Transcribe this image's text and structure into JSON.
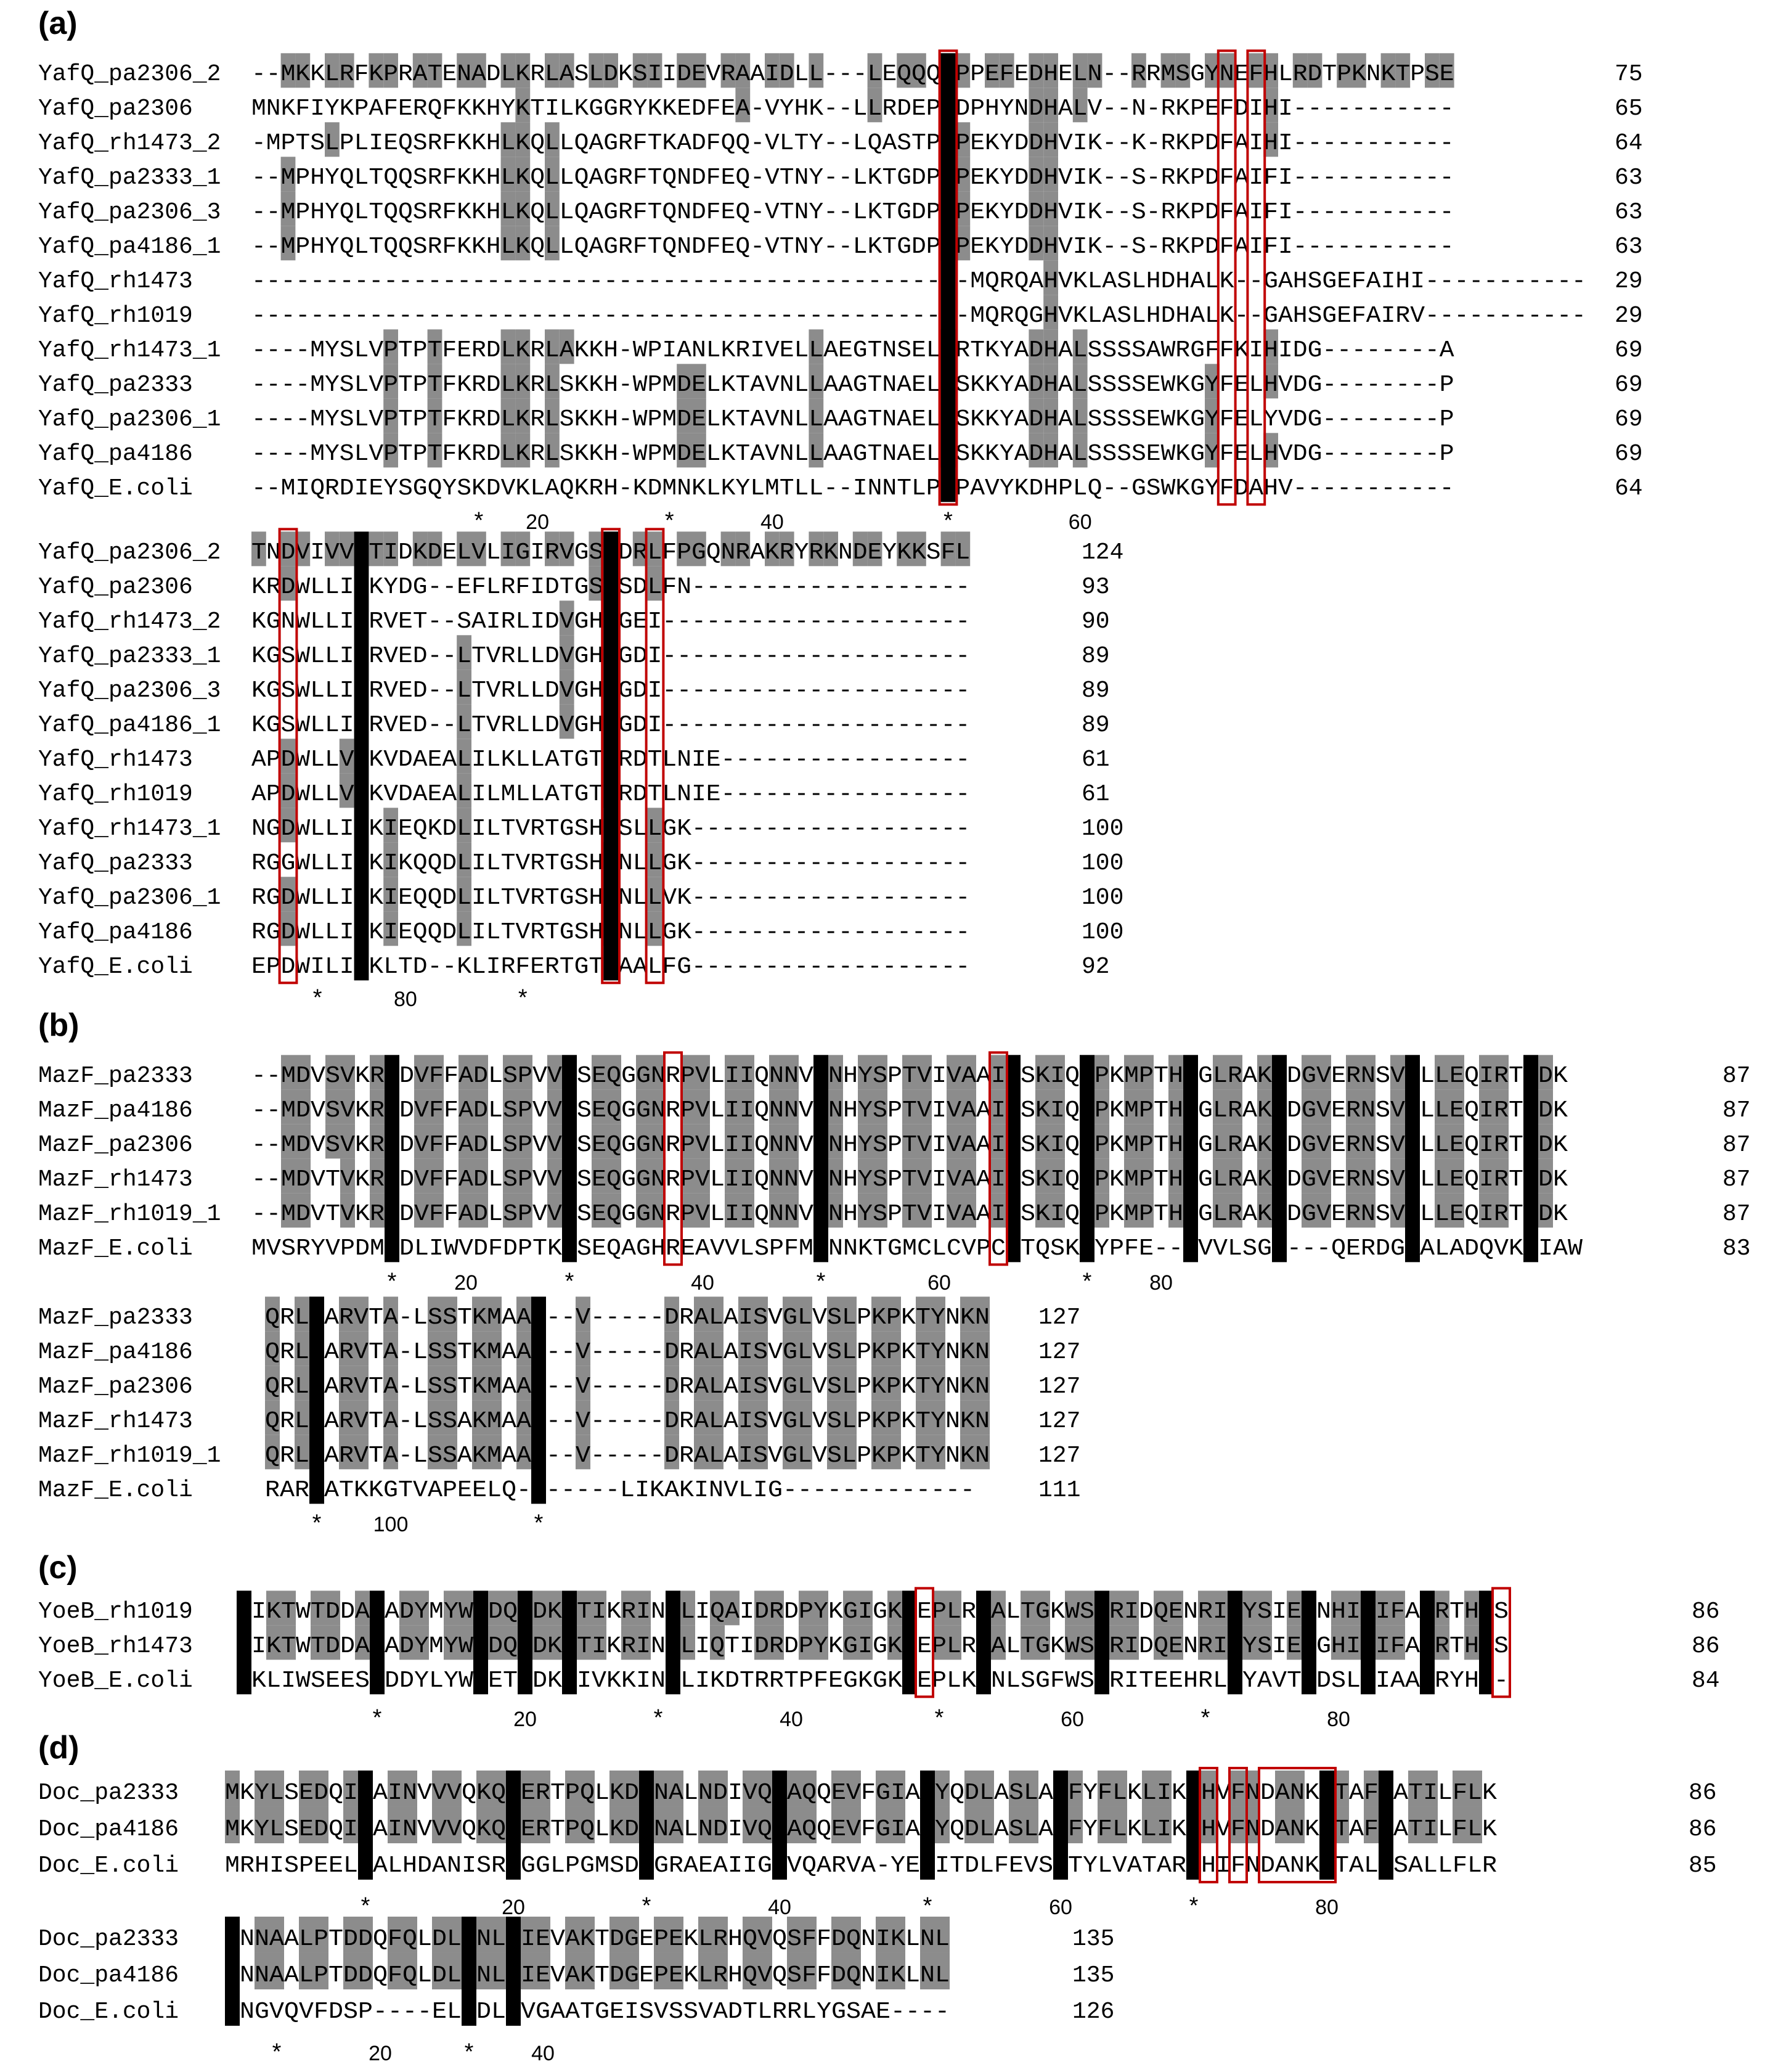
{
  "panels": [
    {
      "label": "(a)",
      "blocks": [
        {
          "rows": [
            {
              "name": "YafQ_pa2306_2",
              "seq": "--MKKLRFKPRATENADLKRLASLDKSIIDEVRAAIDLL---LEQQQLPPEFEDHELN--RRMSGYNEFHLRDTPKNKTPSE",
              "count": "75"
            },
            {
              "name": "YafQ_pa2306",
              "seq": "MNKFIYKPAFERQFKKHYKTILKGGRYKKEDFEA-VYHK--LLRDEPLDPHYNDHALV--N-RKPEFDIHI-----------",
              "count": "65"
            },
            {
              "name": "YafQ_rh1473_2",
              "seq": "-MPTSLPLIEQSRFKKHLKQLLQAGRFTKADFQQ-VLTY--LQASTPLPEKYDDHVIK--K-RKPDFAIHI-----------",
              "count": "64"
            },
            {
              "name": "YafQ_pa2333_1",
              "seq": "--MPHYQLTQQSRFKKHLKQLLQAGRFTQNDFEQ-VTNY--LKTGDPLPEKYDDHVIK--S-RKPDFAIFI-----------",
              "count": "63"
            },
            {
              "name": "YafQ_pa2306_3",
              "seq": "--MPHYQLTQQSRFKKHLKQLLQAGRFTQNDFEQ-VTNY--LKTGDPLPEKYDDHVIK--S-RKPDFAIFI-----------",
              "count": "63"
            },
            {
              "name": "YafQ_pa4186_1",
              "seq": "--MPHYQLTQQSRFKKHLKQLLQAGRFTQNDFEQ-VTNY--LKTGDPLPEKYDDHVIK--S-RKPDFAIFI-----------",
              "count": "63"
            },
            {
              "name": "YafQ_rh1473",
              "seq": "-------------------------------------------------MQRQAHVKLASLHDHALK--GAHSGEFAIHI-----------",
              "count": "29"
            },
            {
              "name": "YafQ_rh1019",
              "seq": "-------------------------------------------------MQRQGHVKLASLHDHALK--GAHSGEFAIRV-----------",
              "count": "29"
            },
            {
              "name": "YafQ_rh1473_1",
              "seq": "----MYSLVPTPTFERDLKRLAKKH-WPIANLKRIVELLAEGTNSELLRTKYADHALSSSSAWRGFFKIHIDG--------A",
              "count": "69"
            },
            {
              "name": "YafQ_pa2333",
              "seq": "----MYSLVPTPTFKRDLKRLSKKH-WPMDELKTAVNLLAAGTNAELLSKKYADHALSSSSEWKGYFELHVDG--------P",
              "count": "69"
            },
            {
              "name": "YafQ_pa2306_1",
              "seq": "----MYSLVPTPTFKRDLKRLSKKH-WPMDELKTAVNLLAAGTNAELLSKKYADHALSSSSEWKGYFELYVDG--------P",
              "count": "69"
            },
            {
              "name": "YafQ_pa4186",
              "seq": "----MYSLVPTPTFKRDLKRLSKKH-WPMDELKTAVNLLAAGTNAELLSKKYADHALSSSSEWKGYFELHVDG--------P",
              "count": "69"
            },
            {
              "name": "YafQ_E.coli",
              "seq": "--MIQRDIEYSGQYSKDVKLAQKRH-KDMNKLKYLMTLL--INNTLPLPAVYKDHPLQ--GSWKGYFDAHV-----------",
              "count": "64"
            }
          ],
          "ruler": [
            {
              "col": 15,
              "text": "*"
            },
            {
              "col": 19,
              "text": "20"
            },
            {
              "col": 28,
              "text": "*"
            },
            {
              "col": 35,
              "text": "40"
            },
            {
              "col": 47,
              "text": "*"
            },
            {
              "col": 56,
              "text": "60"
            }
          ]
        },
        {
          "rows": [
            {
              "name": "YafQ_pa2306_2",
              "seq": "TNDVIVVYTIDKDELVLIGIRVGSHDRLFPGQNRAKRYRKNDEYKKSFL",
              "count": "124"
            },
            {
              "name": "YafQ_pa2306",
              "seq": "KRDWLLIYKYDG--EFLRFIDTGSHSDLFN-------------------",
              "count": "93"
            },
            {
              "name": "YafQ_rh1473_2",
              "seq": "KGNWLLIYRVET--SAIRLIDVGHHGEI---------------------",
              "count": "90"
            },
            {
              "name": "YafQ_pa2333_1",
              "seq": "KGSWLLIYRVED--LTVRLLDVGHHGDI---------------------",
              "count": "89"
            },
            {
              "name": "YafQ_pa2306_3",
              "seq": "KGSWLLIYRVED--LTVRLLDVGHHGDI---------------------",
              "count": "89"
            },
            {
              "name": "YafQ_pa4186_1",
              "seq": "KGSWLLIYRVED--LTVRLLDVGHHGDI---------------------",
              "count": "89"
            },
            {
              "name": "YafQ_rh1473",
              "seq": "APDWLLVYKVDAEALILKLLATGTHRDTLNIE-----------------",
              "count": "61"
            },
            {
              "name": "YafQ_rh1019",
              "seq": "APDWLLVYKVDAEALILMLLATGTHRDTLNIE-----------------",
              "count": "61"
            },
            {
              "name": "YafQ_rh1473_1",
              "seq": "NGDWLLIYKIEQKDLILTVRTGSHKSLLGK-------------------",
              "count": "100"
            },
            {
              "name": "YafQ_pa2333",
              "seq": "RGGWLLIYKIKQQDLILTVRTGSHHNLLGK-------------------",
              "count": "100"
            },
            {
              "name": "YafQ_pa2306_1",
              "seq": "RGDWLLIYKIEQQDLILTVRTGSHHNLLVK-------------------",
              "count": "100"
            },
            {
              "name": "YafQ_pa4186",
              "seq": "RGDWLLIYKIEQQDLILTVRTGSHHNLLGK-------------------",
              "count": "100"
            },
            {
              "name": "YafQ_E.coli",
              "seq": "EPDWILIYKLTD--KLIRFERTGTHAALFG-------------------",
              "count": "92"
            }
          ],
          "ruler": [
            {
              "col": 4,
              "text": "*"
            },
            {
              "col": 10,
              "text": "80"
            },
            {
              "col": 18,
              "text": "*"
            }
          ]
        }
      ]
    },
    {
      "label": "(b)",
      "blocks": [
        {
          "rows": [
            {
              "name": "MazF_pa2333",
              "seq": "--MDVSVKRGDVFFADLSPVVGSEQGGNRPVLIIQNNVGNHYSPTVIVAAITSKIQKPKMPTHVGLRAKQDGVERNSVILLEQIRTIDK",
              "count": "87"
            },
            {
              "name": "MazF_pa4186",
              "seq": "--MDVSVKRGDVFFADLSPVVGSEQGGNRPVLIIQNNVGNHYSPTVIVAAITSKIQKPKMPTHVGLRAKQDGVERNSVILLEQIRTIDK",
              "count": "87"
            },
            {
              "name": "MazF_pa2306",
              "seq": "--MDVSVKRGDVFFADLSPVVGSEQGGNRPVLIIQNNVGNHYSPTVIVAAITSKIQKPKMPTHVGLRAKQDGVERNSVILLEQIRTIDK",
              "count": "87"
            },
            {
              "name": "MazF_rh1473",
              "seq": "--MDVTVKRGDVFFADLSPVVGSEQGGNRPVLIIQNNVGNHYSPTVIVAAITSKIQKPKMPTHVGLRAKQDGVERNSVILLEQIRTIDK",
              "count": "87"
            },
            {
              "name": "MazF_rh1019_1",
              "seq": "--MDVTVKRGDVFFADLSPVVGSEQGGNRPVLIIQNNVGNHYSPTVIVAAITSKIQKPKMPTHVGLRAKQDGVERNSVILLEQIRTIDK",
              "count": "87"
            },
            {
              "name": "MazF_E.coli",
              "seq": "MVSRYVPDMGDLIWVDFDPTKGSEQAGHREAVVLSPFMYNNKTGMCLCVPCTTQSKGYPFE---VVLSG----QERDGVALADQVKSIAW",
              "count": "83"
            }
          ],
          "ruler": [
            {
              "col": 9,
              "text": "*"
            },
            {
              "col": 14,
              "text": "20"
            },
            {
              "col": 21,
              "text": "*"
            },
            {
              "col": 30,
              "text": "40"
            },
            {
              "col": 38,
              "text": "*"
            },
            {
              "col": 46,
              "text": "60"
            },
            {
              "col": 56,
              "text": "*"
            },
            {
              "col": 61,
              "text": "80"
            }
          ]
        },
        {
          "rows": [
            {
              "name": "MazF_pa2333",
              "seq": "QRLQARVTA-LSSTKMAA---V-----DRALAISVGLVSLPKPKTYNKN",
              "count": "127"
            },
            {
              "name": "MazF_pa4186",
              "seq": "QRLQARVTA-LSSTKMAA---V-----DRALAISVGLVSLPKPKTYNKN",
              "count": "127"
            },
            {
              "name": "MazF_pa2306",
              "seq": "QRLQARVTA-LSSTKMAA---V-----DRALAISVGLVSLPKPKTYNKN",
              "count": "127"
            },
            {
              "name": "MazF_rh1473",
              "seq": "QRLQARVTA-LSSAKMAA---V-----DRALAISVGLVSLPKPKTYNKN",
              "count": "127"
            },
            {
              "name": "MazF_rh1019_1",
              "seq": "QRLQARVTA-LSSAKMAA---V-----DRALAISVGLVSLPKPKTYNKN",
              "count": "127"
            },
            {
              "name": "MazF_E.coli",
              "seq": "RARGATKKGTVAPEELQ-------LIKAKINVLIG-------------",
              "count": "111"
            }
          ],
          "ruler": [
            {
              "col": 3,
              "text": "*"
            },
            {
              "col": 8,
              "text": "100"
            },
            {
              "col": 18,
              "text": "*"
            }
          ]
        }
      ]
    },
    {
      "label": "(c)",
      "blocks": [
        {
          "rows": [
            {
              "name": "YoeB_rh1019",
              "seq": "MIKTWTDDAWADYMYWHDQNDKRTIKRINQLIQAIDRDPYKGIGKPEPLRYALTGKWSRRIDQENRIIYSIEKNHINIFACRTHYS",
              "count": "86"
            },
            {
              "name": "YoeB_rh1473",
              "seq": "MIKTWTDDAWADYMYWHDQNDKRTIKRINQLIQTIDRDPYKGIGKPEPLRYALTGKWSRRIDQENRIIYSIEKGHINIFACRTHYS",
              "count": "86"
            },
            {
              "name": "YoeB_E.coli",
              "seq": "MKLIWSEESWDDYLYWQET-DKRIVKKINELIKDTRRTPFEGKGKPEPLKHNLSGFWSRRITEEHRLVYAVTDDSLLIAACRYHY-",
              "count": "84"
            }
          ],
          "ruler": [
            {
              "col": 9,
              "text": "*"
            },
            {
              "col": 19,
              "text": "20"
            },
            {
              "col": 28,
              "text": "*"
            },
            {
              "col": 37,
              "text": "40"
            },
            {
              "col": 47,
              "text": "*"
            },
            {
              "col": 56,
              "text": "60"
            },
            {
              "col": 65,
              "text": "*"
            },
            {
              "col": 74,
              "text": "80"
            }
          ]
        }
      ]
    },
    {
      "label": "(d)",
      "blocks": [
        {
          "rows": [
            {
              "name": "Doc_pa2333",
              "seq": "MKYLSEDQIIAINVVVQKQQERTPQLKDANALNDIVQSAQQEVFGIALYQDLASLATFYFLKLIKKHVFNDANKRTAFMATILFLK",
              "count": "86"
            },
            {
              "name": "Doc_pa4186",
              "seq": "MKYLSEDQIIAINVVVQKQQERTPQLKDANALNDIVQSAQQEVFGIALYQDLASLATFYFLKLIKKHVFNDANKRTAFMATILFLK",
              "count": "86"
            },
            {
              "name": "Doc_E.coli",
              "seq": "MRHISPEELIALHDANISRYGGLPGMSDPGRAEAIIGRVQARVA-YEEITDLFEVSATYLVATARGHIFNDANKRTALNSALLFLR",
              "count": "85"
            }
          ],
          "ruler": [
            {
              "col": 9,
              "text": "*"
            },
            {
              "col": 19,
              "text": "20"
            },
            {
              "col": 28,
              "text": "*"
            },
            {
              "col": 37,
              "text": "40"
            },
            {
              "col": 47,
              "text": "*"
            },
            {
              "col": 56,
              "text": "60"
            },
            {
              "col": 65,
              "text": "*"
            },
            {
              "col": 74,
              "text": "80"
            }
          ]
        },
        {
          "rows": [
            {
              "name": "Doc_pa2333",
              "seq": "RNNAALPTDDQFQLDLGNLAIEVAKTDGEPEKLRHQVQSFFDQNIKLNL",
              "count": "135"
            },
            {
              "name": "Doc_pa4186",
              "seq": "RNNAALPTDDQFQLDLGNLAIEVAKTDGEPEKLRHQVQSFFDQNIKLNL",
              "count": "135"
            },
            {
              "name": "Doc_E.coli",
              "seq": "RNGVQVFDSP----ELADLTVGAATGEISVSSVADTLRRLYGSAE----",
              "count": "126"
            }
          ],
          "ruler": [
            {
              "col": 3,
              "text": "*"
            },
            {
              "col": 10,
              "text": "20"
            },
            {
              "col": 16,
              "text": "*"
            },
            {
              "col": 21,
              "text": "40"
            }
          ]
        }
      ]
    }
  ]
}
